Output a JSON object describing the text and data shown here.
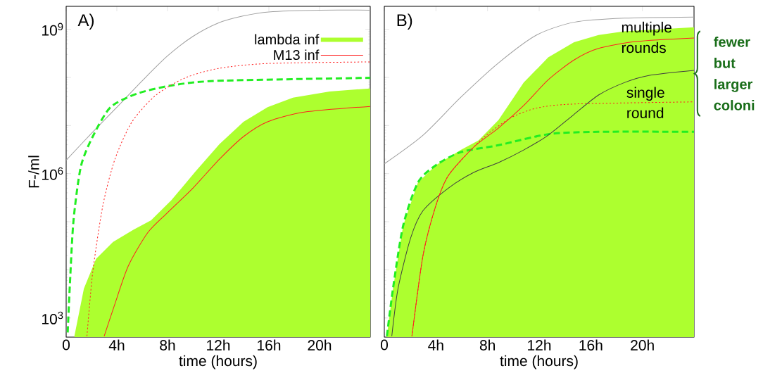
{
  "chart_data": [
    {
      "type": "line",
      "annotations": [
        "A)"
      ],
      "xlabel": "time (hours)",
      "ylabel": "F-/ml",
      "xlim": [
        0,
        24
      ],
      "ylim": [
        400,
        3000000000.0
      ],
      "log": "y",
      "legend": "top right",
      "xticks": [
        0,
        {
          "value": 4,
          "label": "4h"
        },
        {
          "value": 8,
          "label": "8h"
        },
        {
          "value": 12,
          "label": "12h"
        },
        {
          "value": 16,
          "label": "16h"
        },
        {
          "value": 20,
          "label": "20h"
        }
      ],
      "yticks": [
        {
          "value": 1000,
          "label": "10$^{3}$"
        },
        {
          "value": 10000,
          "label": null
        },
        {
          "value": 100000,
          "label": null
        },
        {
          "value": 1000000,
          "label": "10$^{6}$"
        },
        {
          "value": 10000000,
          "label": null
        },
        {
          "value": 100000000,
          "label": null
        },
        {
          "value": 1000000000,
          "label": "10$^{9}$"
        }
      ],
      "series": [
        {
          "name": "lambda inf",
          "type": "area",
          "color": "#adff2f",
          "x": [
            0.65,
            1.4,
            2.36,
            3.7,
            5.3,
            6.7,
            8.3,
            10.2,
            12.1,
            14,
            15.9,
            17.9,
            20.8,
            24
          ],
          "values": [
            420,
            4100,
            17000,
            38000,
            68000,
            107000,
            280000,
            1100000,
            4100000,
            12000000,
            24000000,
            38000000,
            51000000,
            59000000
          ]
        },
        {
          "color": "#a0a0a0",
          "line_style": "solid",
          "x": [
            0,
            2,
            4,
            6,
            8,
            10,
            12,
            14,
            16,
            20,
            24
          ],
          "values": [
            1900000,
            6900000,
            24000000,
            85000000,
            280000000,
            710000000,
            1350000000,
            1900000000,
            2300000000,
            2500000000,
            2500000000
          ]
        },
        {
          "color": "#22ee22",
          "line_style": "dashed",
          "x": [
            0.12,
            0.3,
            0.58,
            1.16,
            2.1,
            3.5,
            5.6,
            8.3,
            12,
            24
          ],
          "values": [
            500,
            5400,
            107000,
            1400000,
            5900000,
            24000000,
            46000000,
            68000000,
            85000000,
            98000000
          ]
        },
        {
          "color": "#ff2020",
          "line_style": "dotted",
          "x": [
            1.64,
            2.1,
            2.9,
            3.85,
            5.2,
            7.1,
            9.4,
            12.1,
            16,
            24
          ],
          "values": [
            420,
            9100,
            220000,
            2000000,
            12000000,
            43000000,
            98000000,
            155000000,
            195000000,
            210000000
          ]
        },
        {
          "name": "M13 inf",
          "color": "#ff2020",
          "line_style": "solid",
          "x": [
            3.0,
            3.8,
            4.9,
            6.45,
            8.0,
            10.0,
            12.1,
            14,
            15.9,
            18.8,
            24
          ],
          "values": [
            420,
            1800,
            12000,
            60000,
            155000,
            500000,
            2000000,
            5900000,
            12000000,
            19000000,
            25000000
          ]
        }
      ]
    },
    {
      "type": "line",
      "annotations": [
        "B)",
        "fewer but larger coloni",
        {
          "text": "multiple rounds",
          "x": 20.7,
          "y": 680000000
        },
        {
          "text": "single round",
          "x": 21.1,
          "y": 30000000
        }
      ],
      "xlabel": "time (hours)",
      "xlim": [
        0,
        24
      ],
      "ylim": [
        400,
        3000000000.0
      ],
      "log": "y",
      "tick_labels": "x",
      "xticks": [
        0,
        {
          "value": 4,
          "label": "4h"
        },
        {
          "value": 8,
          "label": "8h"
        },
        {
          "value": 12,
          "label": "12h"
        },
        {
          "value": 16,
          "label": "16h"
        },
        {
          "value": 20,
          "label": "20h"
        }
      ],
      "yticks": [
        {
          "value": 1000,
          "label": null
        },
        {
          "value": 10000,
          "label": null
        },
        {
          "value": 100000,
          "label": null
        },
        {
          "value": 1000000,
          "label": null
        },
        {
          "value": 10000000,
          "label": null
        },
        {
          "value": 100000000,
          "label": null
        },
        {
          "value": 1000000000,
          "label": null
        }
      ],
      "series": [
        {
          "type": "area",
          "color": "#adff2f",
          "x": [
            0.2,
            0.68,
            1.46,
            2.6,
            4.0,
            5.93,
            7.3,
            8.85,
            10.8,
            12.7,
            14.7,
            16.6,
            18.6,
            24
          ],
          "values": [
            420,
            4200,
            83000,
            650000,
            1500000,
            3100000,
            4900000,
            13000000,
            78000000,
            260000000,
            540000000,
            760000000,
            910000000,
            1100000000
          ]
        },
        {
          "color": "#a0a0a0",
          "line_style": "solid",
          "x": [
            0,
            3.0,
            5.9,
            8.85,
            11.8,
            14.7,
            18.6,
            24
          ],
          "values": [
            1600000,
            6300000,
            38000000,
            200000000,
            760000000,
            1400000000,
            1700000000,
            1800000000
          ]
        },
        {
          "color": "#22ee22",
          "line_style": "dashed",
          "x": [
            0.2,
            0.68,
            1.46,
            2.6,
            4.0,
            5.93,
            8.85,
            12.7,
            16.6,
            24
          ],
          "values": [
            420,
            4200,
            83000,
            650000,
            1500000,
            2800000,
            3900000,
            6600000,
            7400000,
            7400000
          ]
        },
        {
          "color": "#ff2020",
          "line_style": "dotted",
          "x": [
            2.14,
            3.0,
            4.0,
            4.96,
            6.9,
            7.9,
            9.8,
            11.8,
            14.7,
            24
          ],
          "values": [
            420,
            20000,
            220000,
            910000,
            3500000,
            6300000,
            14500000,
            23000000,
            28000000,
            31000000
          ]
        },
        {
          "color": "#404040",
          "line_style": "solid",
          "x": [
            0.58,
            1.07,
            2.04,
            3.0,
            4.96,
            6.9,
            8.85,
            10.8,
            12.7,
            14.7,
            16.6,
            18.6,
            20.5,
            24
          ],
          "values": [
            420,
            4200,
            46000,
            170000,
            500000,
            1050000,
            1700000,
            3100000,
            6300000,
            17000000,
            43000000,
            78000000,
            110000000,
            140000000
          ]
        },
        {
          "color": "#ff2020",
          "line_style": "solid",
          "x": [
            2.14,
            3.0,
            4.0,
            4.96,
            6.9,
            8.85,
            10.8,
            12.7,
            14.7,
            16.6,
            19.6,
            24
          ],
          "values": [
            420,
            20000,
            220000,
            910000,
            3500000,
            8900000,
            26000000,
            89000000,
            230000000,
            400000000,
            560000000,
            660000000
          ]
        }
      ]
    }
  ]
}
